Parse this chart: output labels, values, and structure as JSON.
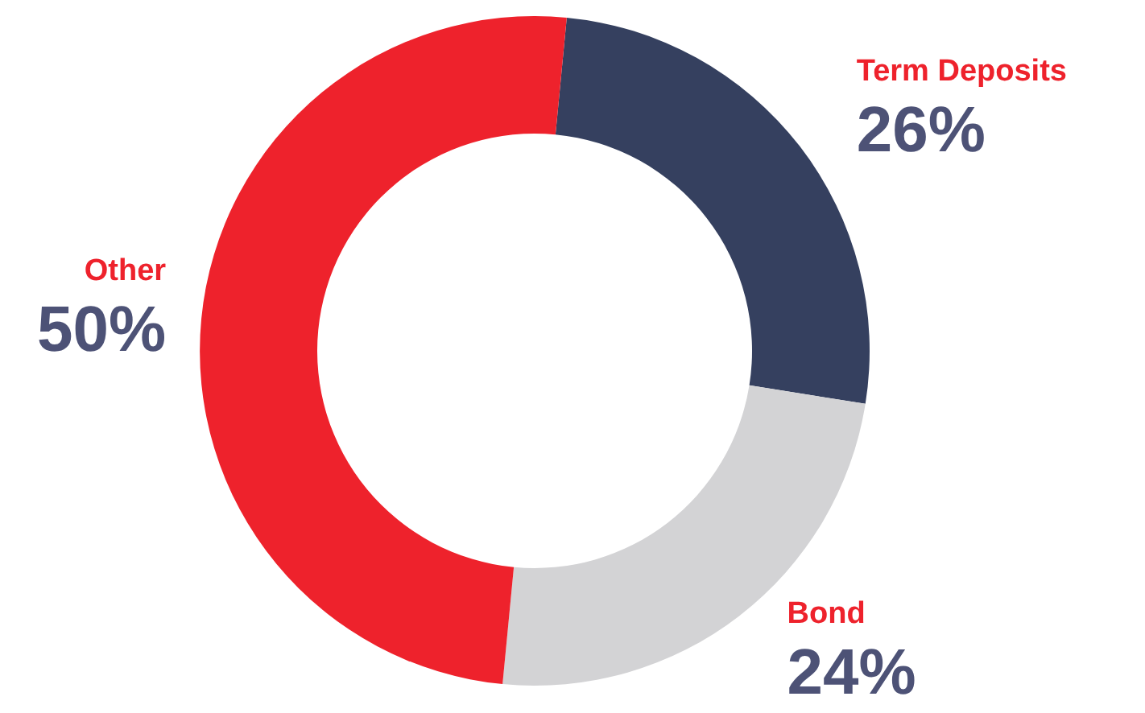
{
  "chart_data": {
    "type": "donut",
    "categories": [
      "Term Deposits",
      "Bond",
      "Other"
    ],
    "values": [
      26,
      24,
      50
    ],
    "colors": [
      "#35405f",
      "#d3d3d5",
      "#ee222c"
    ],
    "value_labels": [
      "26%",
      "24%",
      "50%"
    ]
  }
}
